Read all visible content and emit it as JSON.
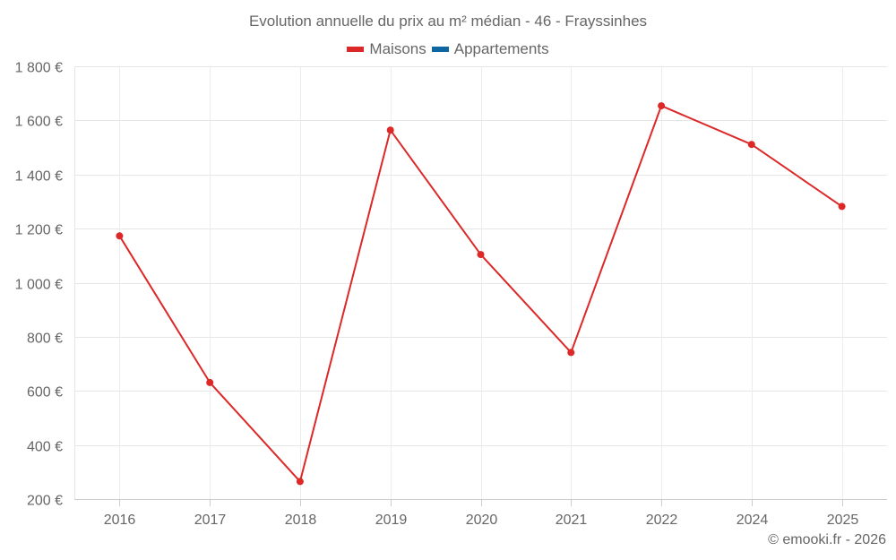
{
  "title": "Evolution annuelle du prix au m² médian - 46 - Frayssinhes",
  "legend": [
    {
      "label": "Maisons",
      "color": "#dd2828"
    },
    {
      "label": "Appartements",
      "color": "#0d66a1"
    }
  ],
  "credits": "© emooki.fr - 2026",
  "chart_data": {
    "type": "line",
    "title": "Evolution annuelle du prix au m² médian - 46 - Frayssinhes",
    "xlabel": "",
    "ylabel": "",
    "categories": [
      "2016",
      "2017",
      "2018",
      "2019",
      "2020",
      "2021",
      "2022",
      "2024",
      "2025"
    ],
    "series": [
      {
        "name": "Maisons",
        "color": "#dd2828",
        "values": [
          1173,
          631,
          265,
          1564,
          1104,
          742,
          1654,
          1511,
          1282
        ]
      },
      {
        "name": "Appartements",
        "color": "#0d66a1",
        "values": []
      }
    ],
    "ylim": [
      200,
      1800
    ],
    "yticks": [
      200,
      400,
      600,
      800,
      1000,
      1200,
      1400,
      1600,
      1800
    ],
    "ytick_labels": [
      "200 €",
      "400 €",
      "600 €",
      "800 €",
      "1 000 €",
      "1 200 €",
      "1 400 €",
      "1 600 €",
      "1 800 €"
    ],
    "grid": true,
    "legend_position": "top"
  }
}
